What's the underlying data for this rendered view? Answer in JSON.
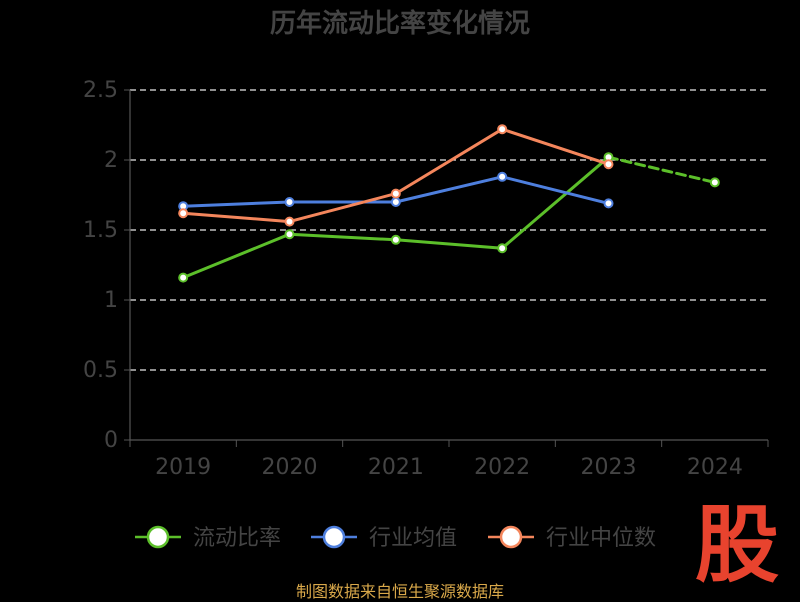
{
  "chart_data": {
    "type": "line",
    "title": "历年流动比率变化情况",
    "categories": [
      "2019",
      "2020",
      "2021",
      "2022",
      "2023",
      "2024"
    ],
    "ylim": [
      0,
      2.5
    ],
    "yticks": [
      "0",
      "0.5",
      "1",
      "1.5",
      "2",
      "2.5"
    ],
    "grid": true,
    "legend_position": "bottom",
    "series": [
      {
        "name": "流动比率",
        "color": "#5cbf2a",
        "values": [
          1.16,
          1.47,
          1.43,
          1.37,
          2.02,
          1.84
        ],
        "dashed_after_index": 4
      },
      {
        "name": "行业均值",
        "color": "#4e7fde",
        "values": [
          1.67,
          1.7,
          1.7,
          1.88,
          1.69,
          null
        ]
      },
      {
        "name": "行业中位数",
        "color": "#f4865c",
        "values": [
          1.62,
          1.56,
          1.76,
          2.22,
          1.97,
          null
        ]
      }
    ]
  },
  "watermark": "股",
  "source_text": "制图数据来自恒生聚源数据库"
}
